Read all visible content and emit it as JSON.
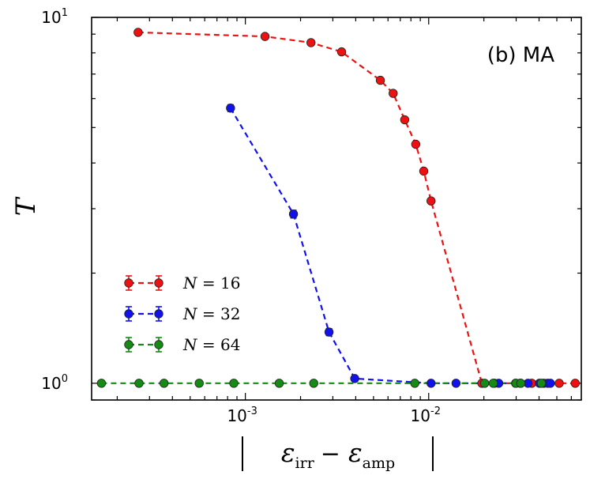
{
  "chart_data": {
    "type": "scatter",
    "panel_label": "(b) MA",
    "xlabel": "|ε_irr − ε_amp|",
    "ylabel": "T",
    "xscale": "log",
    "yscale": "log",
    "xlim": [
      0.000145,
      0.068
    ],
    "ylim": [
      0.9,
      10
    ],
    "x_ticks": [
      {
        "value": 0.001,
        "base": "10",
        "exp": "-3"
      },
      {
        "value": 0.01,
        "base": "10",
        "exp": "-2"
      }
    ],
    "y_ticks": [
      {
        "value": 1,
        "base": "10",
        "exp": "0"
      },
      {
        "value": 10,
        "base": "10",
        "exp": "1"
      }
    ],
    "series": [
      {
        "name": "N = 16",
        "legend_var": "N",
        "legend_eq": " = ",
        "legend_num": "16",
        "color": "#ee1111",
        "points": [
          {
            "x": 0.00026,
            "y": 9.1,
            "err": 0
          },
          {
            "x": 0.00128,
            "y": 8.87,
            "err": 0
          },
          {
            "x": 0.00228,
            "y": 8.53,
            "err": 0
          },
          {
            "x": 0.00335,
            "y": 8.05,
            "err": 0
          },
          {
            "x": 0.00545,
            "y": 6.73,
            "err": 0
          },
          {
            "x": 0.0064,
            "y": 6.2,
            "err": 0
          },
          {
            "x": 0.0074,
            "y": 5.25,
            "err": 0
          },
          {
            "x": 0.0085,
            "y": 4.5,
            "err": 0.04
          },
          {
            "x": 0.0094,
            "y": 3.8,
            "err": 0.04
          },
          {
            "x": 0.0103,
            "y": 3.15,
            "err": 0.04
          },
          {
            "x": 0.0195,
            "y": 1.0,
            "err": 0
          },
          {
            "x": 0.0228,
            "y": 1.0,
            "err": 0
          },
          {
            "x": 0.0298,
            "y": 1.0,
            "err": 0
          },
          {
            "x": 0.0365,
            "y": 1.0,
            "err": 0
          },
          {
            "x": 0.0425,
            "y": 1.0,
            "err": 0
          },
          {
            "x": 0.0515,
            "y": 1.0,
            "err": 0
          },
          {
            "x": 0.063,
            "y": 1.0,
            "err": 0
          }
        ]
      },
      {
        "name": "N = 32",
        "legend_var": "N",
        "legend_eq": " = ",
        "legend_num": "32",
        "color": "#1111ee",
        "points": [
          {
            "x": 0.00083,
            "y": 5.65,
            "err": 0.12
          },
          {
            "x": 0.00183,
            "y": 2.9,
            "err": 0.07
          },
          {
            "x": 0.00286,
            "y": 1.38,
            "err": 0.03
          },
          {
            "x": 0.00395,
            "y": 1.03,
            "err": 0
          },
          {
            "x": 0.0103,
            "y": 1.0,
            "err": 0
          },
          {
            "x": 0.0141,
            "y": 1.0,
            "err": 0
          },
          {
            "x": 0.0241,
            "y": 1.0,
            "err": 0
          },
          {
            "x": 0.0316,
            "y": 1.0,
            "err": 0
          },
          {
            "x": 0.0348,
            "y": 1.0,
            "err": 0
          },
          {
            "x": 0.0402,
            "y": 1.0,
            "err": 0
          },
          {
            "x": 0.0446,
            "y": 1.0,
            "err": 0
          },
          {
            "x": 0.0461,
            "y": 1.0,
            "err": 0
          }
        ]
      },
      {
        "name": "N = 64",
        "legend_var": "N",
        "legend_eq": " = ",
        "legend_num": "64",
        "color": "#158a15",
        "points": [
          {
            "x": 0.000164,
            "y": 1.0,
            "err": 0
          },
          {
            "x": 0.000263,
            "y": 1.0,
            "err": 0
          },
          {
            "x": 0.00036,
            "y": 1.0,
            "err": 0
          },
          {
            "x": 0.00056,
            "y": 1.0,
            "err": 0
          },
          {
            "x": 0.000865,
            "y": 1.0,
            "err": 0
          },
          {
            "x": 0.00153,
            "y": 1.0,
            "err": 0
          },
          {
            "x": 0.00236,
            "y": 1.0,
            "err": 0
          },
          {
            "x": 0.0084,
            "y": 1.0,
            "err": 0
          },
          {
            "x": 0.0202,
            "y": 1.0,
            "err": 0
          },
          {
            "x": 0.0225,
            "y": 1.0,
            "err": 0
          },
          {
            "x": 0.0299,
            "y": 1.0,
            "err": 0
          },
          {
            "x": 0.0318,
            "y": 1.0,
            "err": 0
          },
          {
            "x": 0.0412,
            "y": 1.0,
            "err": 0
          }
        ]
      }
    ]
  }
}
